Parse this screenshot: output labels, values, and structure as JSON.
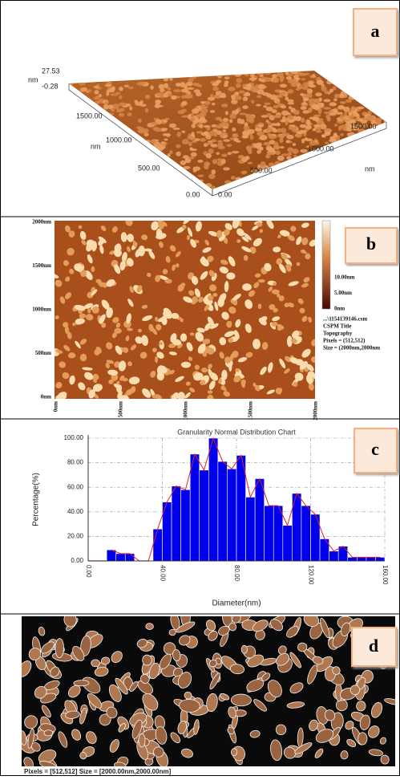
{
  "panel_a": {
    "label": "a",
    "z_unit": "nm",
    "z_max": "27.53",
    "z_min": "-0.28",
    "y_ticks": [
      "1500.00",
      "1000.00",
      "500.00",
      "0.00"
    ],
    "y_unit": "nm",
    "x_ticks": [
      "0.00",
      "500.00",
      "1000.00",
      "1500.00"
    ],
    "x_unit": "nm"
  },
  "panel_b": {
    "label": "b",
    "y_ticks": [
      "2000nm",
      "1500nm",
      "1000nm",
      "500nm",
      "0nm"
    ],
    "x_ticks": [
      "0nm",
      "500nm",
      "1000nm",
      "1500nm",
      "2000nm"
    ],
    "colorbar_ticks": [
      "10.00nm",
      "5.00nm",
      "0nm"
    ],
    "info": [
      "...\\1154139146.csm",
      "CSPM Title",
      "Topography",
      "Pixels = (512,512)",
      "Size = (2000nm,2000nm"
    ]
  },
  "chart_data": {
    "type": "histogram",
    "panel_label": "c",
    "title": "Granularity Normal Distribution  Chart",
    "y_label": "Percentage(%)",
    "x_label": "Diameter(nm)",
    "bins": [
      10,
      15,
      20,
      25,
      30,
      35,
      40,
      45,
      50,
      55,
      60,
      65,
      70,
      75,
      80,
      85,
      90,
      95,
      100,
      105,
      110,
      115,
      120,
      125,
      130,
      135,
      140,
      145,
      150,
      155,
      160
    ],
    "values": [
      9,
      6,
      6,
      0,
      0,
      26,
      48,
      61,
      58,
      87,
      74,
      100,
      81,
      75,
      86,
      52,
      67,
      45,
      45,
      29,
      55,
      45,
      38,
      18,
      8,
      12,
      3,
      3,
      3,
      3
    ],
    "color": "#0000ee",
    "line_color": "#dd2222",
    "xlim": [
      0,
      160
    ],
    "ylim": [
      0,
      100
    ],
    "xticks": [
      {
        "value": 0,
        "label": "0.00"
      },
      {
        "value": 40,
        "label": "40.00"
      },
      {
        "value": 80,
        "label": "80.00"
      },
      {
        "value": 120,
        "label": "120.00"
      },
      {
        "value": 160,
        "label": "160.00"
      }
    ],
    "yticks": [
      {
        "value": 0,
        "label": "0.00"
      },
      {
        "value": 20,
        "label": "20.00"
      },
      {
        "value": 40,
        "label": "40.00"
      },
      {
        "value": 60,
        "label": "60.00"
      },
      {
        "value": 80,
        "label": "80.00"
      },
      {
        "value": 100,
        "label": "100.00"
      }
    ],
    "grid": true
  },
  "panel_d": {
    "label": "d",
    "caption": "Pixels = [512,512]    Size = [2000.00nm,2000.00nm]"
  }
}
